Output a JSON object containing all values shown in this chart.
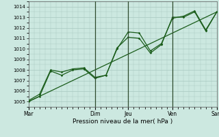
{
  "xlabel": "Pression niveau de la mer( hPa )",
  "bg_color": "#cce8e0",
  "grid_color": "#a8c8c0",
  "line_color": "#1a5c1a",
  "vline_color": "#2d4a2d",
  "ylim": [
    1004.5,
    1014.5
  ],
  "xlim": [
    0,
    17
  ],
  "yticks": [
    1005,
    1006,
    1007,
    1008,
    1009,
    1010,
    1011,
    1012,
    1013,
    1014
  ],
  "day_labels": [
    "Mar",
    "Dim",
    "Jeu",
    "Ven",
    "Sam"
  ],
  "day_positions": [
    0,
    6,
    9,
    13,
    17
  ],
  "vline_positions": [
    6,
    9,
    13
  ],
  "line1_x": [
    0,
    1,
    2,
    3,
    4,
    5,
    6,
    7,
    8,
    9,
    10,
    11,
    12,
    13,
    14,
    15,
    16,
    17
  ],
  "line1_y": [
    1005.1,
    1005.7,
    1008.0,
    1007.8,
    1008.1,
    1008.2,
    1007.3,
    1007.5,
    1010.0,
    1011.6,
    1011.5,
    1009.8,
    1010.5,
    1012.9,
    1013.1,
    1013.6,
    1011.8,
    1013.5
  ],
  "line2_x": [
    0,
    1,
    2,
    3,
    4,
    5,
    6,
    7,
    8,
    9,
    10,
    11,
    12,
    13,
    14,
    15,
    16,
    17
  ],
  "line2_y": [
    1005.0,
    1005.5,
    1007.9,
    1007.5,
    1008.0,
    1008.1,
    1007.2,
    1007.5,
    1010.1,
    1011.1,
    1011.0,
    1009.6,
    1010.4,
    1013.0,
    1013.0,
    1013.5,
    1011.7,
    1013.5
  ],
  "trend_x": [
    0,
    17
  ],
  "trend_y": [
    1005.0,
    1013.5
  ]
}
